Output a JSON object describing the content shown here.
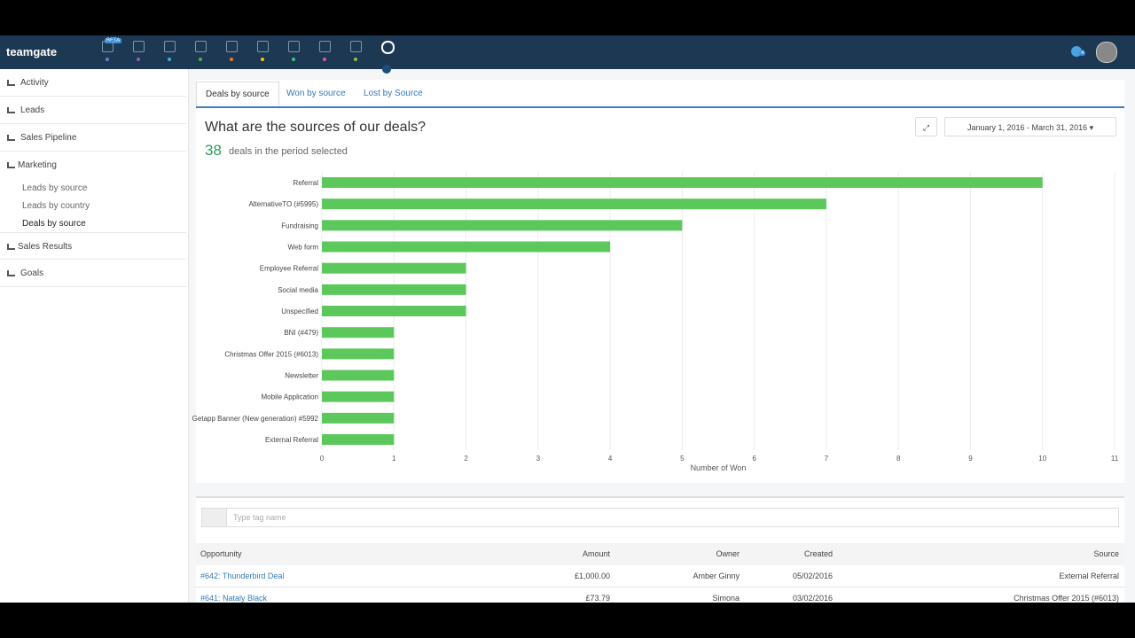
{
  "nav": {
    "brand": "teamgate",
    "badge": "BETA",
    "notifications": "4"
  },
  "sidebar": {
    "items": [
      "Activity",
      "Leads",
      "Sales Pipeline",
      "Marketing",
      "Sales Results",
      "Goals"
    ],
    "submenu": [
      "Leads by source",
      "Leads by country",
      "Deals by source"
    ]
  },
  "tabs": [
    "Deals by source",
    "Won by source",
    "Lost by Source"
  ],
  "header": {
    "question": "What are the sources of our deals?",
    "count": "38",
    "count_text": "deals in the period selected",
    "date_range": "January 1, 2016 - March 31, 2016"
  },
  "chart_data": {
    "type": "bar",
    "orientation": "horizontal",
    "categories": [
      "Referral",
      "AlternativeTO (#5995)",
      "Fundraising",
      "Web form",
      "Employee Referral",
      "Social media",
      "Unspecified",
      "BNI (#479)",
      "Christmas Offer 2015 (#6013)",
      "Newsletter",
      "Mobile Application",
      "Getapp Banner (New generation) #5992",
      "External Referral"
    ],
    "values": [
      10,
      7,
      5,
      4,
      2,
      2,
      2,
      1,
      1,
      1,
      1,
      1,
      1
    ],
    "color": "#5cc85c",
    "xlim": [
      0,
      11
    ],
    "xticks": [
      0,
      1,
      2,
      3,
      4,
      5,
      6,
      7,
      8,
      9,
      10,
      11
    ],
    "xlabel": "Number of Won",
    "grid": true
  },
  "filter": {
    "placeholder": "Type tag name"
  },
  "table": {
    "columns": [
      "Opportunity",
      "Amount",
      "Owner",
      "Created",
      "Source"
    ],
    "rows": [
      [
        "#642: Thunderbird Deal",
        "£1,000.00",
        "Amber Ginny",
        "05/02/2016",
        "External Referral"
      ],
      [
        "#641: Nataly Black",
        "£73.79",
        "Simona",
        "03/02/2016",
        "Christmas Offer 2015 (#6013)"
      ]
    ]
  }
}
